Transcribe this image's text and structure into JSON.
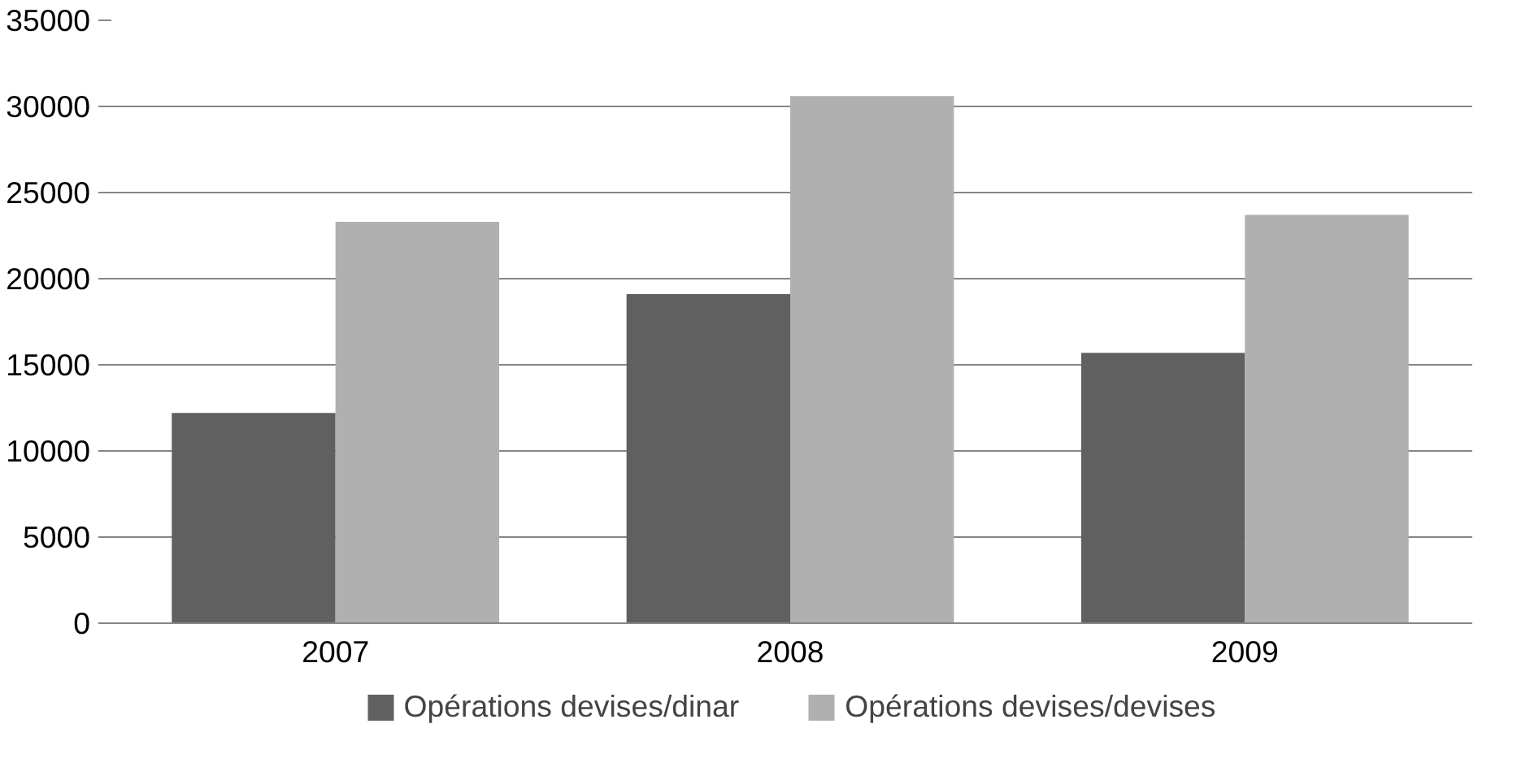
{
  "chart_data": {
    "type": "bar",
    "categories": [
      "2007",
      "2008",
      "2009"
    ],
    "series": [
      {
        "name": "Opérations devises/dinar",
        "color": "#606060",
        "values": [
          12200,
          19100,
          15700
        ]
      },
      {
        "name": "Opérations devises/devises",
        "color": "#b0b0b0",
        "values": [
          23300,
          30600,
          23700
        ]
      }
    ],
    "ylim": [
      0,
      35000
    ],
    "yticks": [
      0,
      5000,
      10000,
      15000,
      20000,
      25000,
      30000,
      35000
    ],
    "grid": "y",
    "legend": "bottom"
  }
}
